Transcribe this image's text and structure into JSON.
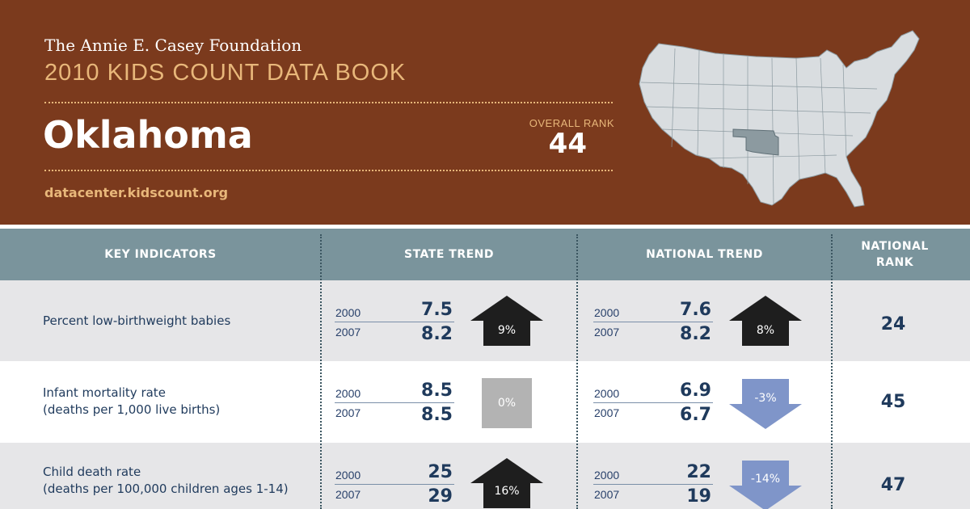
{
  "header": {
    "foundation": "The Annie E. Casey Foundation",
    "book_title": "2010 KIDS COUNT DATA BOOK",
    "state": "Oklahoma",
    "overall_rank_label": "OVERALL RANK",
    "overall_rank": "44",
    "website": "datacenter.kidscount.org"
  },
  "map": {
    "highlighted_state": "oklahoma-icon",
    "land_color": "#d9dde0",
    "highlight_color": "#8c9aa0"
  },
  "table": {
    "columns": [
      "KEY INDICATORS",
      "STATE TREND",
      "NATIONAL TREND",
      "NATIONAL RANK"
    ],
    "rows": [
      {
        "name": "Percent low-birthweight babies",
        "sub": "",
        "state": {
          "y1": "2000",
          "v1": "7.5",
          "y2": "2007",
          "v2": "8.2",
          "change": "9%",
          "direction": "up"
        },
        "national": {
          "y1": "2000",
          "v1": "7.6",
          "y2": "2007",
          "v2": "8.2",
          "change": "8%",
          "direction": "up"
        },
        "rank": "24"
      },
      {
        "name": "Infant mortality rate",
        "sub": "(deaths per 1,000 live births)",
        "state": {
          "y1": "2000",
          "v1": "8.5",
          "y2": "2007",
          "v2": "8.5",
          "change": "0%",
          "direction": "flat"
        },
        "national": {
          "y1": "2000",
          "v1": "6.9",
          "y2": "2007",
          "v2": "6.7",
          "change": "-3%",
          "direction": "down"
        },
        "rank": "45"
      },
      {
        "name": "Child death rate",
        "sub": "(deaths per 100,000 children ages 1-14)",
        "state": {
          "y1": "2000",
          "v1": "25",
          "y2": "2007",
          "v2": "29",
          "change": "16%",
          "direction": "up"
        },
        "national": {
          "y1": "2000",
          "v1": "22",
          "y2": "2007",
          "v2": "19",
          "change": "-14%",
          "direction": "down"
        },
        "rank": "47"
      }
    ]
  },
  "colors": {
    "header_bg": "#7b3a1d",
    "accent": "#e8b77a",
    "table_header": "#7a949c",
    "up_arrow": "#1e1e1e",
    "down_arrow": "#7f95c9",
    "flat": "#b3b3b3"
  }
}
